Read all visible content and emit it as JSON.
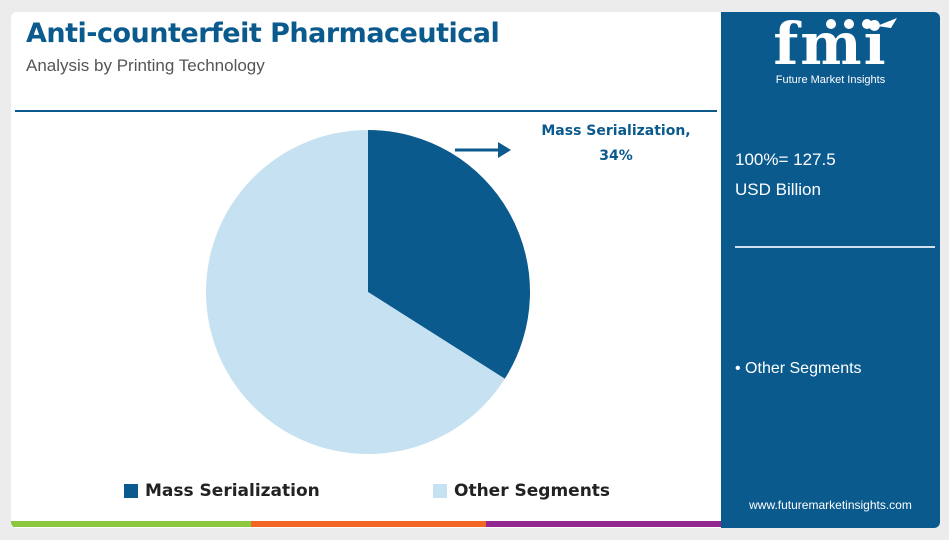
{
  "header": {
    "title": "Anti-counterfeit Pharmaceutical",
    "subtitle": "Analysis by Printing Technology"
  },
  "callout": {
    "line1": "Mass Serialization,",
    "line2": "34%"
  },
  "chart_data": {
    "type": "pie",
    "categories": [
      "Mass Serialization",
      "Other Segments"
    ],
    "values": [
      34,
      66
    ],
    "unit": "%",
    "colors": [
      "#0b5a8e",
      "#c6e1f2"
    ],
    "legend_position": "bottom"
  },
  "legend": {
    "items": [
      {
        "label": "Mass Serialization",
        "color": "#0b5a8e"
      },
      {
        "label": "Other Segments",
        "color": "#c6e1f2"
      }
    ]
  },
  "panel": {
    "brand": "fmi",
    "brand_tagline": "Future Market Insights",
    "total_line1": "100%= 127.5",
    "total_line2": "USD Billion",
    "other_segments": "• Other Segments",
    "url": "www.futuremarketinsights.com",
    "background": "#0b5a8e"
  },
  "footer_colors": [
    "#8dc63f",
    "#f26522",
    "#92278f"
  ]
}
